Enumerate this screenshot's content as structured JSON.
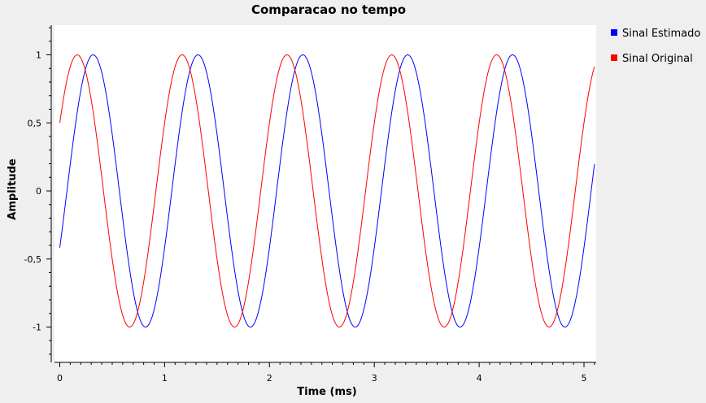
{
  "chart_data": {
    "type": "line",
    "title": "Comparacao no tempo",
    "xlabel": "Time (ms)",
    "ylabel": "Amplitude",
    "xlim": [
      -0.02,
      5.12
    ],
    "ylim": [
      -1.25,
      1.22
    ],
    "xticks": [
      0,
      1,
      2,
      3,
      4,
      5
    ],
    "xtick_labels": [
      "0",
      "1",
      "2",
      "3",
      "4",
      "5"
    ],
    "yticks": [
      -1,
      -0.5,
      0,
      0.5,
      1
    ],
    "ytick_labels": [
      "-1",
      "-0,5",
      "0",
      "0,5",
      "1"
    ],
    "grid": false,
    "legend_position": "right",
    "series": [
      {
        "name": "Sinal Estimado",
        "color": "#0000ff",
        "amplitude": 1,
        "period_ms": 1.0,
        "phase_rad": -0.4296,
        "x_start": 0,
        "x_end": 5.1
      },
      {
        "name": "Sinal Original",
        "color": "#ff0000",
        "amplitude": 1,
        "period_ms": 1.0,
        "phase_rad": 0.5236,
        "x_start": 0,
        "x_end": 5.1
      }
    ]
  }
}
